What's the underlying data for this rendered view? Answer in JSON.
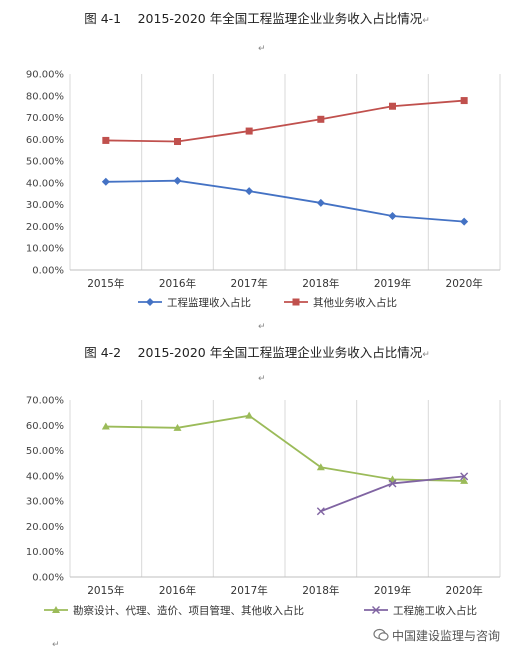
{
  "figures": [
    {
      "title": "图 4-1　 2015-2020 年全国工程监理企业业务收入占比情况",
      "mark": "↵",
      "chart_data": {
        "type": "line",
        "categories": [
          "2015年",
          "2016年",
          "2017年",
          "2018年",
          "2019年",
          "2020年"
        ],
        "ylim": [
          0,
          90
        ],
        "ytick_step": 10,
        "ytick_labels": [
          "0.00%",
          "10.00%",
          "20.00%",
          "30.00%",
          "40.00%",
          "50.00%",
          "60.00%",
          "70.00%",
          "80.00%",
          "90.00%"
        ],
        "grid": "vertical",
        "legend": "bottom",
        "series": [
          {
            "name": "工程监理收入占比",
            "color": "#4472C4",
            "marker": "diamond",
            "values": [
              40.5,
              41.0,
              36.2,
              30.8,
              24.8,
              22.2
            ]
          },
          {
            "name": "其他业务收入占比",
            "color": "#C0504D",
            "marker": "square",
            "values": [
              59.5,
              59.0,
              63.8,
              69.2,
              75.2,
              77.8
            ]
          }
        ]
      }
    },
    {
      "title": "图 4-2　 2015-2020 年全国工程监理企业业务收入占比情况",
      "mark": "↵",
      "chart_data": {
        "type": "line",
        "categories": [
          "2015年",
          "2016年",
          "2017年",
          "2018年",
          "2019年",
          "2020年"
        ],
        "ylim": [
          0,
          70
        ],
        "ytick_step": 10,
        "ytick_labels": [
          "0.00%",
          "10.00%",
          "20.00%",
          "30.00%",
          "40.00%",
          "50.00%",
          "60.00%",
          "70.00%"
        ],
        "grid": "vertical",
        "legend": "bottom",
        "series": [
          {
            "name": "勘察设计、代理、造价、项目管理、其他收入占比",
            "color": "#9BBB59",
            "marker": "triangle",
            "values": [
              59.5,
              59.0,
              63.8,
              43.4,
              38.6,
              38.0
            ]
          },
          {
            "name": "工程施工收入占比",
            "color": "#8064A2",
            "marker": "x",
            "values": [
              null,
              null,
              null,
              26.0,
              37.0,
              39.8
            ]
          }
        ]
      }
    }
  ],
  "watermark": {
    "text": "中国建设监理与咨询",
    "icon": "wechat-icon"
  }
}
